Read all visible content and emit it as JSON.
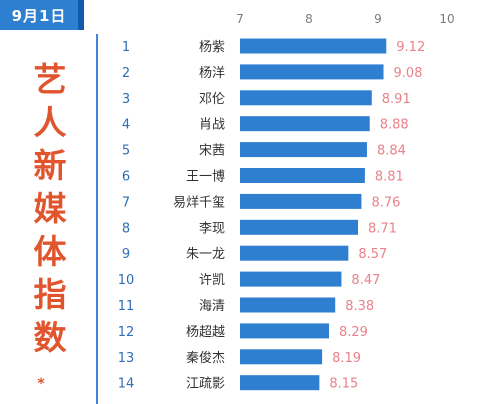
{
  "date": "9月1日",
  "side_title": [
    "艺",
    "人",
    "新",
    "媒",
    "体",
    "指",
    "数"
  ],
  "asterisk": "*",
  "colors": {
    "bar": "#2f7fd0",
    "rank": "#2f6fb6",
    "value": "#e9828a",
    "title": "#e0552d",
    "tab": "#2f7fd0",
    "divider": "#3f86d7"
  },
  "chart_data": {
    "type": "bar",
    "orientation": "horizontal",
    "xlim": [
      7,
      10
    ],
    "x_ticks": [
      "7",
      "8",
      "9",
      "10"
    ],
    "x_tick_values": [
      7,
      8,
      9,
      10
    ],
    "categories": [
      "杨紫",
      "杨洋",
      "邓伦",
      "肖战",
      "宋茜",
      "王一博",
      "易烊千玺",
      "李现",
      "朱一龙",
      "许凯",
      "海清",
      "杨超越",
      "秦俊杰",
      "江疏影"
    ],
    "ranks": [
      "1",
      "2",
      "3",
      "4",
      "5",
      "6",
      "7",
      "8",
      "9",
      "10",
      "11",
      "12",
      "13",
      "14"
    ],
    "values": [
      9.12,
      9.08,
      8.91,
      8.88,
      8.84,
      8.81,
      8.76,
      8.71,
      8.57,
      8.47,
      8.38,
      8.29,
      8.19,
      8.15
    ],
    "value_labels": [
      "9.12",
      "9.08",
      "8.91",
      "8.88",
      "8.84",
      "8.81",
      "8.76",
      "8.71",
      "8.57",
      "8.47",
      "8.38",
      "8.29",
      "8.19",
      "8.15"
    ],
    "grid": false,
    "legend": "none"
  }
}
